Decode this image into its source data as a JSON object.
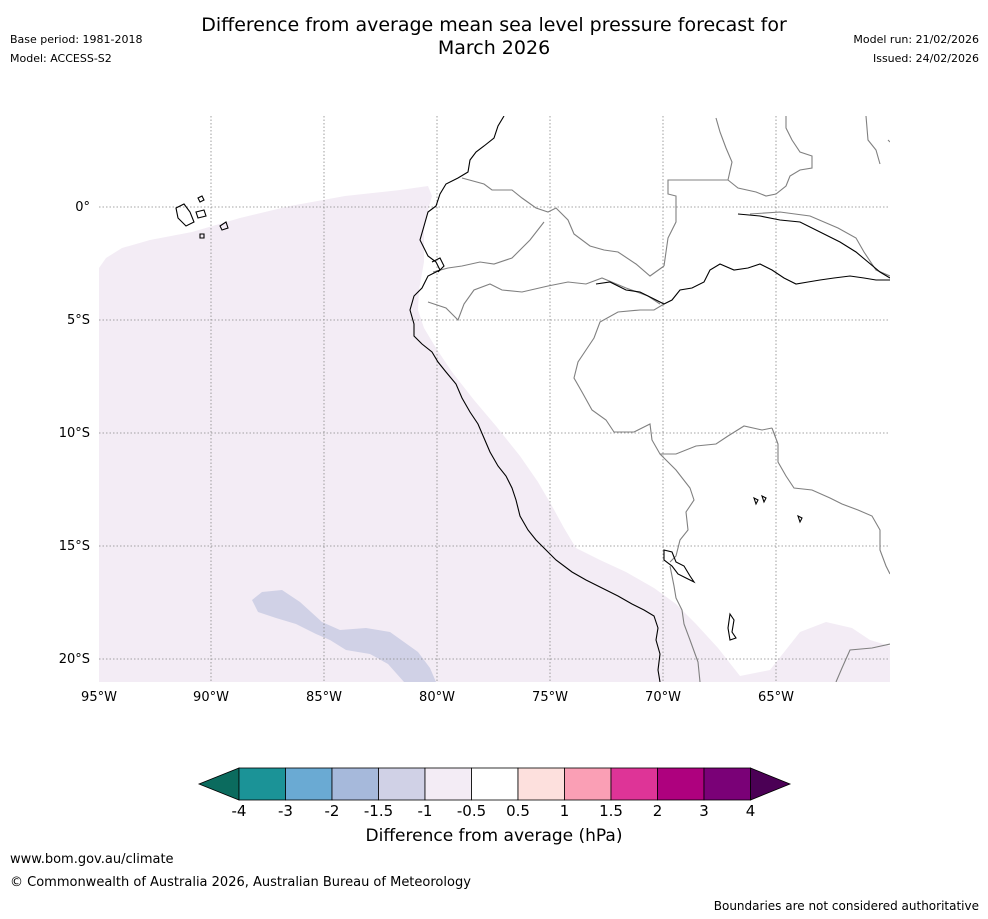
{
  "header": {
    "title_line1": "Difference from average mean sea level pressure forecast for",
    "title_line2": "March 2026",
    "base_period": "Base period: 1981-2018",
    "model": "Model: ACCESS-S2",
    "model_run": "Model run: 21/02/2026",
    "issued": "Issued: 24/02/2026"
  },
  "map": {
    "lat_labels": [
      "0°",
      "5°S",
      "10°S",
      "15°S",
      "20°S"
    ],
    "lon_labels": [
      "95°W",
      "90°W",
      "85°W",
      "80°W",
      "75°W",
      "70°W",
      "65°W"
    ],
    "field_colors": {
      "neg_0_5_to_0_5": "#ffffff",
      "neg_1_to_neg_0_5": "#f3ecf5",
      "neg_1_5_to_neg_1": "#d0d1e6"
    },
    "coast_color": "#000000",
    "border_color": "#808080",
    "grid_color": "#888888"
  },
  "colorbar": {
    "ticks": [
      "-4",
      "-3",
      "-2",
      "-1.5",
      "-1",
      "-0.5",
      "0.5",
      "1",
      "1.5",
      "2",
      "3",
      "4"
    ],
    "low_extend_color": "#0b6b5e",
    "high_extend_color": "#4b0055",
    "colors": [
      "#1b9397",
      "#6aaad3",
      "#a6b9db",
      "#d0d1e6",
      "#f3ecf5",
      "#ffffff",
      "#fde0dd",
      "#fa9fb5",
      "#de3497",
      "#ae017e",
      "#7a0177"
    ],
    "label": "Difference from average (hPa)"
  },
  "footer": {
    "website": "www.bom.gov.au/climate",
    "copyright": "© Commonwealth of Australia 2026, Australian Bureau of Meteorology",
    "disclaimer": "Boundaries are not considered authoritative"
  }
}
